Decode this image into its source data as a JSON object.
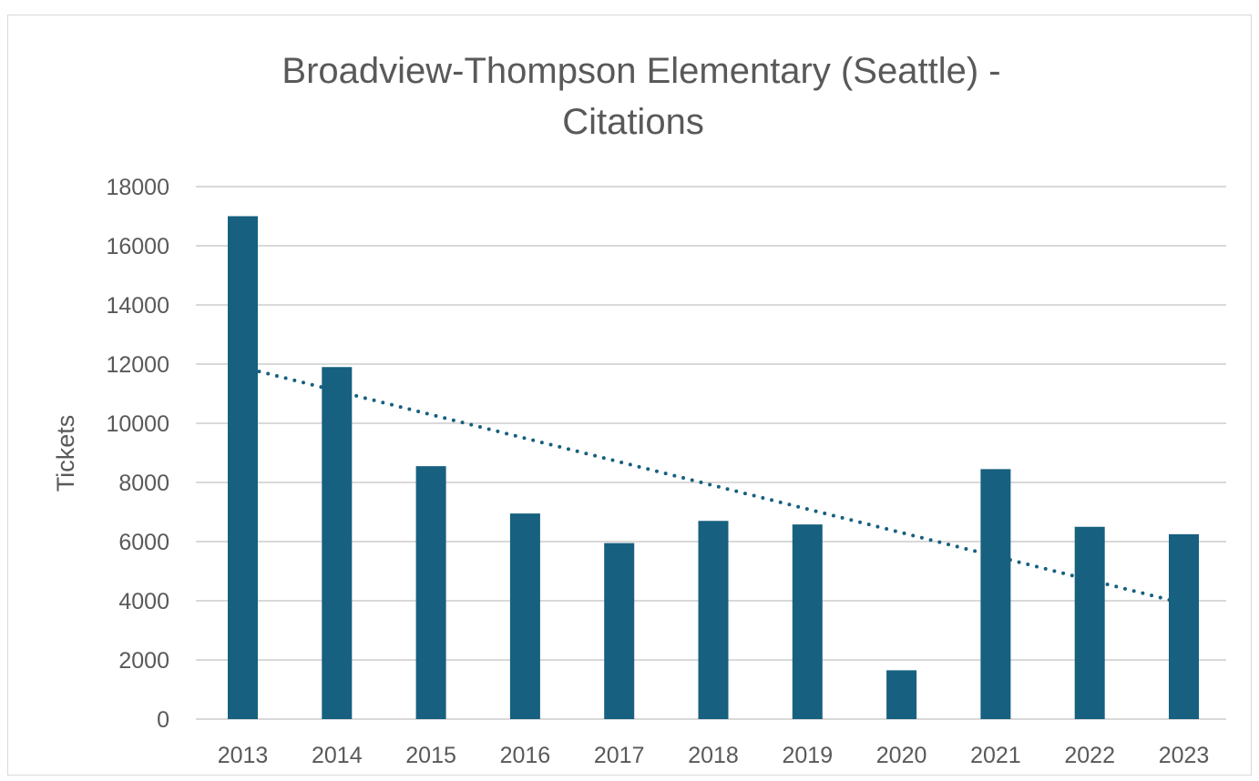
{
  "chart_data": {
    "type": "bar",
    "title_lines": [
      "Broadview-Thompson Elementary (Seattle) -",
      "Citations"
    ],
    "xlabel": "",
    "ylabel": "Tickets",
    "categories": [
      "2013",
      "2014",
      "2015",
      "2016",
      "2017",
      "2018",
      "2019",
      "2020",
      "2021",
      "2022",
      "2023"
    ],
    "series": [
      {
        "name": "Citations",
        "values": [
          17000,
          11900,
          8550,
          6950,
          5950,
          6700,
          6580,
          1650,
          8450,
          6500,
          6250
        ],
        "color": "#17607f"
      }
    ],
    "trendline": {
      "type": "linear",
      "style": "dotted",
      "color": "#17607f",
      "start_value": 11750,
      "end_value": 4000
    },
    "ylim": [
      0,
      18000
    ],
    "yticks": [
      "0",
      "2000",
      "4000",
      "6000",
      "8000",
      "10000",
      "12000",
      "14000",
      "16000",
      "18000"
    ],
    "grid": true,
    "legend": "none"
  },
  "colors": {
    "bar": "#17607f",
    "gridline": "#d9d9d9",
    "text": "#595959"
  }
}
